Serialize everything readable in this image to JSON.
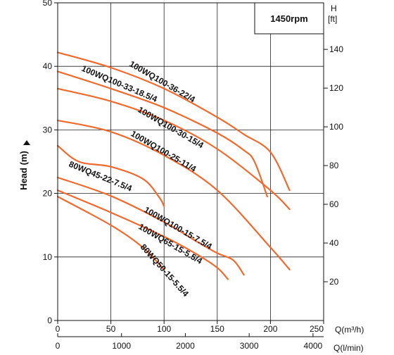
{
  "chart_data": {
    "type": "line",
    "speed_label": "1450rpm",
    "ylabel_left": "Head (m)",
    "ylabel_right_line1": "H",
    "ylabel_right_line2": "[ft]",
    "xlabel_q_m3h": "Q(m³/h)",
    "xlabel_q_lmin": "Q(l/min)",
    "xlim_m3h": [
      0,
      250
    ],
    "ylim_m": [
      0,
      50
    ],
    "x_ticks_m3h": [
      "0",
      "50",
      "100",
      "150",
      "200",
      "250"
    ],
    "x_ticks_lmin": [
      "0",
      "1000",
      "2000",
      "3000",
      "4000"
    ],
    "y_ticks_m": [
      "0",
      "10",
      "20",
      "30",
      "40",
      "50"
    ],
    "y_ticks_ft": [
      "20",
      "40",
      "60",
      "80",
      "100",
      "120",
      "140"
    ],
    "grid": true,
    "series": [
      {
        "name": "100WQ100-36-22/4",
        "x": [
          0,
          50,
          100,
          150,
          175,
          200,
          218
        ],
        "y": [
          42.2,
          39.8,
          36.5,
          32,
          29.3,
          26.5,
          20.5
        ]
      },
      {
        "name": "100WQ100-33-18.5/4",
        "x": [
          0,
          50,
          100,
          150,
          175,
          185,
          197
        ],
        "y": [
          39.2,
          36.5,
          33.5,
          29.5,
          26.8,
          25,
          19.5
        ]
      },
      {
        "name": "100WQ100-30-15/4",
        "x": [
          0,
          50,
          100,
          150,
          200,
          218
        ],
        "y": [
          36.5,
          34.5,
          31.5,
          27,
          20.5,
          17.5
        ]
      },
      {
        "name": "100WQ100-25-11/4",
        "x": [
          0,
          50,
          100,
          150,
          200,
          218
        ],
        "y": [
          31.5,
          29.7,
          26,
          20.5,
          11.5,
          8
        ]
      },
      {
        "name": "80WQ45-22-7.5/4",
        "x": [
          0,
          20,
          50,
          80,
          95,
          100
        ],
        "y": [
          27.5,
          25,
          24.2,
          22.3,
          19.5,
          18
        ]
      },
      {
        "name": "100WQ100-15-7.5/4",
        "x": [
          0,
          50,
          100,
          130,
          150,
          165,
          175
        ],
        "y": [
          22.5,
          19.6,
          15.5,
          12.5,
          10.6,
          9.5,
          7.2
        ]
      },
      {
        "name": "100WQ65-15-5.5/4",
        "x": [
          0,
          50,
          100,
          130,
          150,
          160
        ],
        "y": [
          20.5,
          17,
          13.2,
          10.5,
          8.3,
          6.5
        ]
      },
      {
        "name": "80WQ50-15-5.5/4",
        "x": [
          0,
          50,
          80,
          100
        ],
        "y": [
          19.5,
          15,
          11.5,
          8
        ]
      }
    ]
  }
}
